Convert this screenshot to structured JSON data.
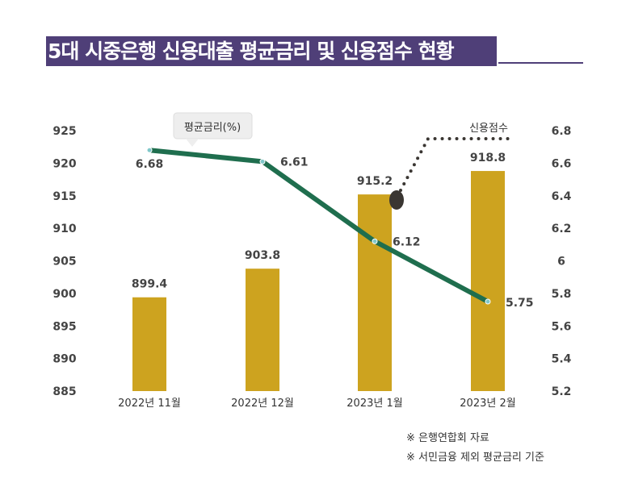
{
  "title": "5대 시중은행 신용대출 평균금리 및 신용점수 현황",
  "chart_data": {
    "type": "bar+line",
    "categories": [
      "2022년 11월",
      "2022년 12월",
      "2023년 1월",
      "2023년 2월"
    ],
    "series": [
      {
        "name": "신용점수",
        "type": "bar",
        "axis": "left",
        "values": [
          899.4,
          903.8,
          915.2,
          918.8
        ],
        "color": "#cda31f"
      },
      {
        "name": "평균금리(%)",
        "type": "line",
        "axis": "right",
        "values": [
          6.68,
          6.61,
          6.12,
          5.75
        ],
        "color": "#1f6e4e"
      }
    ],
    "y_left": {
      "range": [
        885,
        925
      ],
      "ticks": [
        "885",
        "890",
        "895",
        "900",
        "905",
        "910",
        "915",
        "920",
        "925"
      ]
    },
    "y_right": {
      "range": [
        5.2,
        6.8
      ],
      "ticks": [
        "5.2",
        "5.4",
        "5.6",
        "5.8",
        "6",
        "6.2",
        "6.4",
        "6.6",
        "6.8"
      ]
    },
    "bar_labels": [
      "899.4",
      "903.8",
      "915.2",
      "918.8"
    ],
    "line_labels": [
      "6.68",
      "6.61",
      "6.12",
      "5.75"
    ],
    "grid": false
  },
  "notes": [
    "※ 은행연합회 자료",
    "※ 서민금융 제외 평균금리 기준"
  ]
}
